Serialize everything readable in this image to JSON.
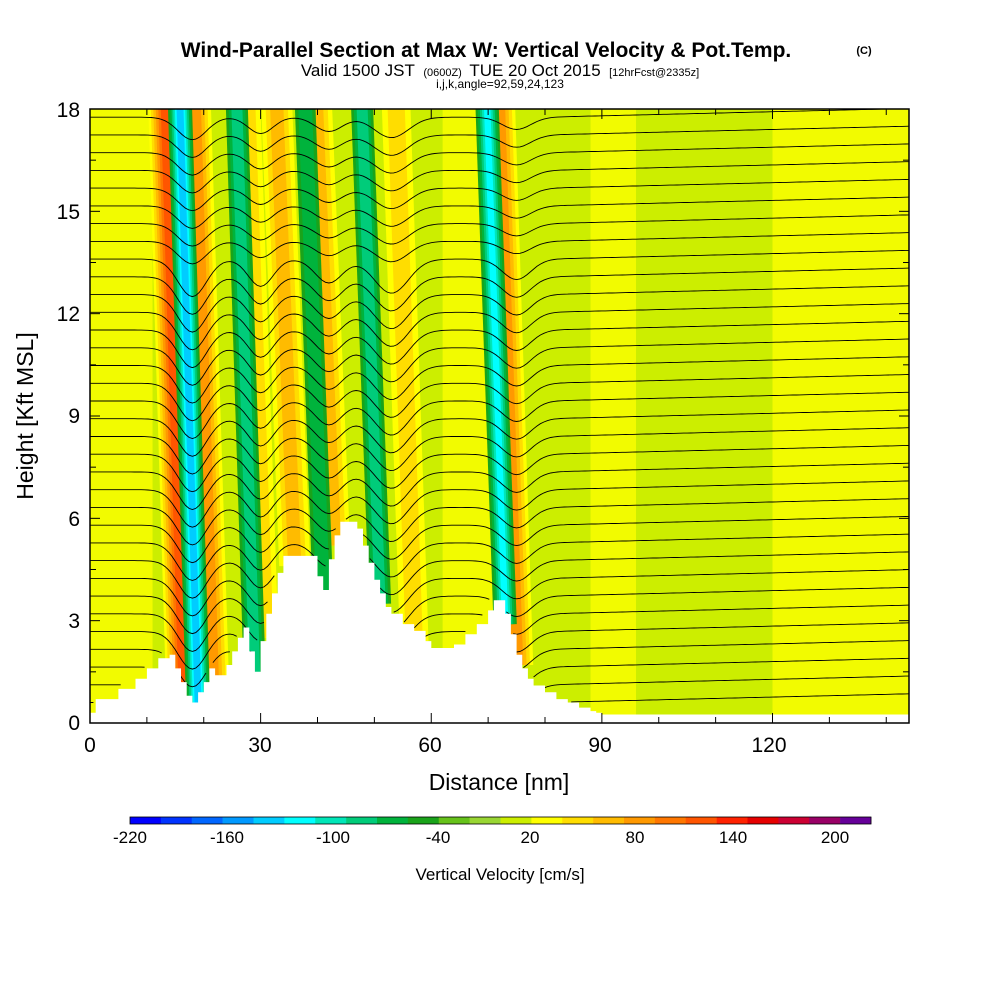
{
  "chart_data": {
    "type": "heatmap",
    "title": {
      "main": "Wind-Parallel Section at Max W: Vertical Velocity & Pot.Temp.",
      "copyright": "(C)",
      "valid_a": "Valid 1500 JST",
      "valid_b": "(0600Z)",
      "valid_c": "TUE 20 Oct 2015",
      "valid_d": "[12hrFcst@2335z]",
      "indices": "i,j,k,angle=92,59,24,123"
    },
    "xlabel": "Distance [nm]",
    "ylabel": "Height [Kft MSL]",
    "xlim": [
      0,
      144
    ],
    "ylim": [
      0,
      18
    ],
    "xticks": [
      "0",
      "30",
      "60",
      "90",
      "120"
    ],
    "yticks": [
      "0",
      "3",
      "6",
      "9",
      "12",
      "15",
      "18"
    ],
    "colorbar": {
      "label": "Vertical Velocity [cm/s]",
      "tick_labels": [
        "-220",
        "-160",
        "-100",
        "-40",
        "20",
        "80",
        "140",
        "200"
      ],
      "colors": [
        "#0000ff",
        "#0033ff",
        "#0066ff",
        "#0099ff",
        "#00ccff",
        "#00ffff",
        "#00e6b8",
        "#00cc7a",
        "#00b33c",
        "#1aa31a",
        "#66c21a",
        "#99d633",
        "#ccee00",
        "#ffff00",
        "#ffdd00",
        "#ffbb00",
        "#ff9900",
        "#ff7700",
        "#ff5500",
        "#ff2200",
        "#e60000",
        "#cc0033",
        "#990066",
        "#660099"
      ]
    },
    "background_velocity_cm_s": 10,
    "updraft_bands": [
      {
        "x_nm": 16.5,
        "w_cm_s": 150
      },
      {
        "x_nm": 21.5,
        "w_cm_s": 110
      },
      {
        "x_nm": 30.5,
        "w_cm_s": 70
      },
      {
        "x_nm": 36,
        "w_cm_s": 80
      },
      {
        "x_nm": 43,
        "w_cm_s": 80
      },
      {
        "x_nm": 57,
        "w_cm_s": 60
      },
      {
        "x_nm": 75,
        "w_cm_s": 110
      }
    ],
    "downdraft_bands": [
      {
        "x_nm": 19,
        "w_cm_s": -150
      },
      {
        "x_nm": 29,
        "w_cm_s": -90
      },
      {
        "x_nm": 41,
        "w_cm_s": -70
      },
      {
        "x_nm": 51,
        "w_cm_s": -90
      },
      {
        "x_nm": 73,
        "w_cm_s": -120
      }
    ],
    "terrain": {
      "x_nm": [
        0,
        1,
        2,
        5,
        8,
        10,
        12,
        14,
        15,
        16,
        17,
        18,
        19,
        20,
        21,
        22,
        24,
        25,
        26,
        27,
        28,
        29,
        30,
        31,
        32,
        33,
        34,
        35,
        36,
        38,
        40,
        41,
        42,
        43,
        44,
        45,
        46,
        47,
        48,
        49,
        50,
        51,
        52,
        53,
        55,
        57,
        59,
        60,
        62,
        64,
        66,
        68,
        70,
        71,
        72,
        73,
        74,
        75,
        76,
        77,
        78,
        80,
        82,
        84,
        86,
        88,
        89,
        90,
        92,
        94,
        96,
        98,
        100,
        102,
        104,
        106,
        108,
        110,
        112,
        114,
        116,
        118,
        120,
        122,
        124,
        126,
        128,
        130,
        132,
        134,
        136,
        138,
        140,
        142,
        144
      ],
      "height_kft": [
        0.3,
        0.7,
        0.7,
        1.0,
        1.3,
        1.6,
        1.9,
        2.0,
        1.6,
        1.2,
        0.8,
        0.6,
        0.9,
        1.2,
        1.6,
        1.4,
        1.7,
        2.1,
        2.5,
        2.8,
        2.1,
        1.5,
        2.4,
        3.2,
        3.8,
        4.4,
        4.9,
        4.9,
        4.9,
        4.9,
        4.3,
        3.9,
        4.8,
        5.5,
        5.9,
        5.9,
        5.9,
        5.7,
        5.2,
        4.7,
        4.2,
        3.8,
        3.4,
        3.2,
        2.9,
        2.7,
        2.4,
        2.2,
        2.2,
        2.3,
        2.6,
        2.9,
        3.3,
        3.6,
        3.6,
        3.2,
        2.6,
        2.0,
        1.6,
        1.3,
        1.1,
        0.9,
        0.7,
        0.6,
        0.45,
        0.35,
        0.3,
        0.25,
        0.25,
        0.25,
        0.25,
        0.25,
        0.25,
        0.25,
        0.25,
        0.25,
        0.25,
        0.25,
        0.25,
        0.25,
        0.25,
        0.25,
        0.25,
        0.25,
        0.25,
        0.25,
        0.25,
        0.25,
        0.25,
        0.25,
        0.25,
        0.25,
        0.25,
        0.25,
        0.25
      ],
      "color": "#ffffff"
    },
    "potential_temperature_contours": {
      "color": "#000000",
      "count": 34
    }
  }
}
